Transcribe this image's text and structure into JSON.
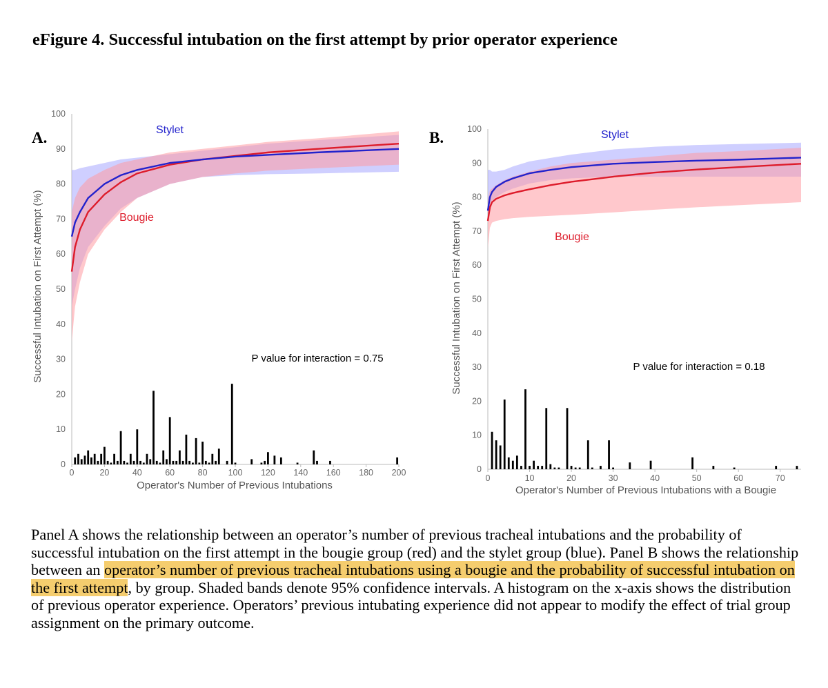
{
  "title": "eFigure 4. Successful intubation on the first attempt by prior operator experience",
  "colors": {
    "bougie": "#dd1c2b",
    "stylet": "#2222cc",
    "bougie_band": "#ff9aa2",
    "stylet_band": "#a8a8ff",
    "highlight": "#f5cd6e"
  },
  "chart_data": [
    {
      "type": "line",
      "panel_label": "A.",
      "xlabel": "Operator's Number of Previous Intubations",
      "ylabel": "Successful Intubation on First Attempt (%)",
      "xlim": [
        0,
        200
      ],
      "ylim": [
        0,
        100
      ],
      "xticks": [
        0,
        20,
        40,
        60,
        80,
        100,
        120,
        140,
        160,
        180,
        200
      ],
      "yticks": [
        0,
        10,
        20,
        30,
        40,
        50,
        60,
        70,
        80,
        90,
        100
      ],
      "annotation": "P value for interaction = 0.75",
      "series": [
        {
          "name": "Stylet",
          "x": [
            0,
            2,
            5,
            10,
            20,
            30,
            40,
            60,
            80,
            100,
            120,
            150,
            200
          ],
          "y": [
            65,
            69,
            72,
            76,
            80,
            82.5,
            84,
            86,
            87,
            87.8,
            88.3,
            89,
            90
          ],
          "lower": [
            45,
            50,
            56,
            62,
            68,
            73,
            76,
            80,
            82,
            82.5,
            82.8,
            83,
            83.5
          ],
          "upper": [
            84,
            84,
            84.5,
            85,
            86,
            87,
            87.5,
            88.5,
            89.5,
            90.5,
            91.5,
            92.5,
            94
          ]
        },
        {
          "name": "Bougie",
          "x": [
            0,
            2,
            5,
            10,
            20,
            30,
            40,
            60,
            80,
            100,
            120,
            150,
            200
          ],
          "y": [
            55,
            62,
            67,
            72,
            77,
            80.5,
            83,
            85.5,
            87,
            88,
            89,
            90,
            91.5
          ],
          "lower": [
            35,
            45,
            52,
            60,
            67,
            72,
            76,
            80,
            82,
            83,
            83.8,
            84.5,
            85.5
          ],
          "upper": [
            72,
            76,
            79,
            81.5,
            84,
            86,
            87,
            89,
            90,
            91,
            92,
            93,
            95
          ]
        }
      ],
      "histogram": {
        "x": [
          2,
          4,
          6,
          8,
          10,
          12,
          14,
          16,
          18,
          20,
          22,
          24,
          26,
          28,
          30,
          32,
          34,
          36,
          38,
          40,
          42,
          44,
          46,
          48,
          50,
          52,
          54,
          56,
          58,
          60,
          62,
          64,
          66,
          68,
          70,
          72,
          74,
          76,
          78,
          80,
          82,
          84,
          86,
          88,
          90,
          95,
          98,
          100,
          110,
          116,
          118,
          120,
          124,
          128,
          138,
          148,
          150,
          158,
          199
        ],
        "y": [
          2,
          3,
          1.5,
          2.5,
          4,
          2,
          3,
          1,
          3,
          5,
          1,
          0.5,
          3,
          1,
          9.5,
          1,
          0.5,
          3,
          1,
          10,
          1,
          0.5,
          3,
          1.5,
          21,
          1,
          0.5,
          4,
          1.5,
          13.5,
          1,
          1,
          4,
          1,
          8.5,
          1,
          0.5,
          7.5,
          0.5,
          6.5,
          1,
          0.5,
          3,
          1,
          4.5,
          1,
          23,
          0.5,
          1.5,
          0.5,
          1,
          3.5,
          2.5,
          2,
          0.5,
          4,
          1,
          1,
          2
        ]
      }
    },
    {
      "type": "line",
      "panel_label": "B.",
      "xlabel": "Operator's Number of Previous Intubations with a Bougie",
      "ylabel": "Successful Intubation on First Attempt (%)",
      "xlim": [
        0,
        75
      ],
      "ylim": [
        0,
        100
      ],
      "xticks": [
        0,
        10,
        20,
        30,
        40,
        50,
        60,
        70
      ],
      "yticks": [
        0,
        10,
        20,
        30,
        40,
        50,
        60,
        70,
        80,
        90,
        100
      ],
      "annotation": "P value for interaction = 0.18",
      "series": [
        {
          "name": "Stylet",
          "x": [
            0,
            0.5,
            1,
            2,
            4,
            6,
            10,
            15,
            20,
            30,
            40,
            50,
            60,
            75
          ],
          "y": [
            76,
            80,
            81.5,
            83,
            84.5,
            85.5,
            87,
            88,
            88.8,
            89.8,
            90.3,
            90.7,
            91,
            91.6
          ],
          "lower": [
            74,
            78,
            79,
            80,
            81.5,
            82.5,
            84,
            85,
            85.5,
            86,
            86,
            86,
            86,
            86
          ],
          "upper": [
            88,
            88,
            87.5,
            87.5,
            88,
            89,
            90.5,
            91.5,
            92.5,
            94,
            94.8,
            95.3,
            95.6,
            96
          ]
        },
        {
          "name": "Bougie",
          "x": [
            0,
            0.5,
            1,
            2,
            4,
            6,
            10,
            15,
            20,
            30,
            40,
            50,
            60,
            75
          ],
          "y": [
            73,
            77,
            78.5,
            79.5,
            80.5,
            81.2,
            82.3,
            83.5,
            84.5,
            86,
            87.2,
            88.1,
            88.8,
            89.8
          ],
          "lower": [
            65,
            71,
            72.5,
            73,
            73.5,
            73.8,
            74.2,
            74.5,
            74.8,
            75.5,
            76.3,
            77,
            77.6,
            78.5
          ],
          "upper": [
            79,
            82,
            82.5,
            83.5,
            85,
            86,
            87.5,
            89,
            90,
            91,
            92,
            93,
            93.5,
            94.5
          ]
        }
      ],
      "histogram": {
        "x": [
          1,
          2,
          3,
          4,
          5,
          6,
          7,
          8,
          9,
          10,
          11,
          12,
          13,
          14,
          15,
          16,
          17,
          19,
          20,
          21,
          22,
          24,
          25,
          27,
          29,
          30,
          34,
          39,
          49,
          54,
          59,
          69,
          74
        ],
        "y": [
          11,
          8.5,
          7,
          20.5,
          3.5,
          2.5,
          4,
          1,
          23.5,
          1,
          2.5,
          1,
          1,
          18,
          1.5,
          0.5,
          0.5,
          18,
          1,
          0.5,
          0.5,
          8.5,
          0.5,
          1,
          8.5,
          0.5,
          2,
          2.5,
          3.5,
          1,
          0.5,
          1,
          1
        ]
      }
    }
  ],
  "caption": {
    "part1": "Panel A shows the relationship between an operator’s number of previous tracheal intubations and the probability of successful intubation on the first attempt in the bougie group (red) and the stylet group (blue). Panel B shows the relationship between an ",
    "highlight": "operator’s number of previous tracheal intubations using a bougie and the probability of successful intubation on the first attempt",
    "part2": ", by group. Shaded bands denote 95% confidence intervals. A histogram on the x-axis shows the distribution of previous operator experience. Operators’ previous intubating experience did not appear to modify the effect of trial group assignment on the primary outcome."
  }
}
